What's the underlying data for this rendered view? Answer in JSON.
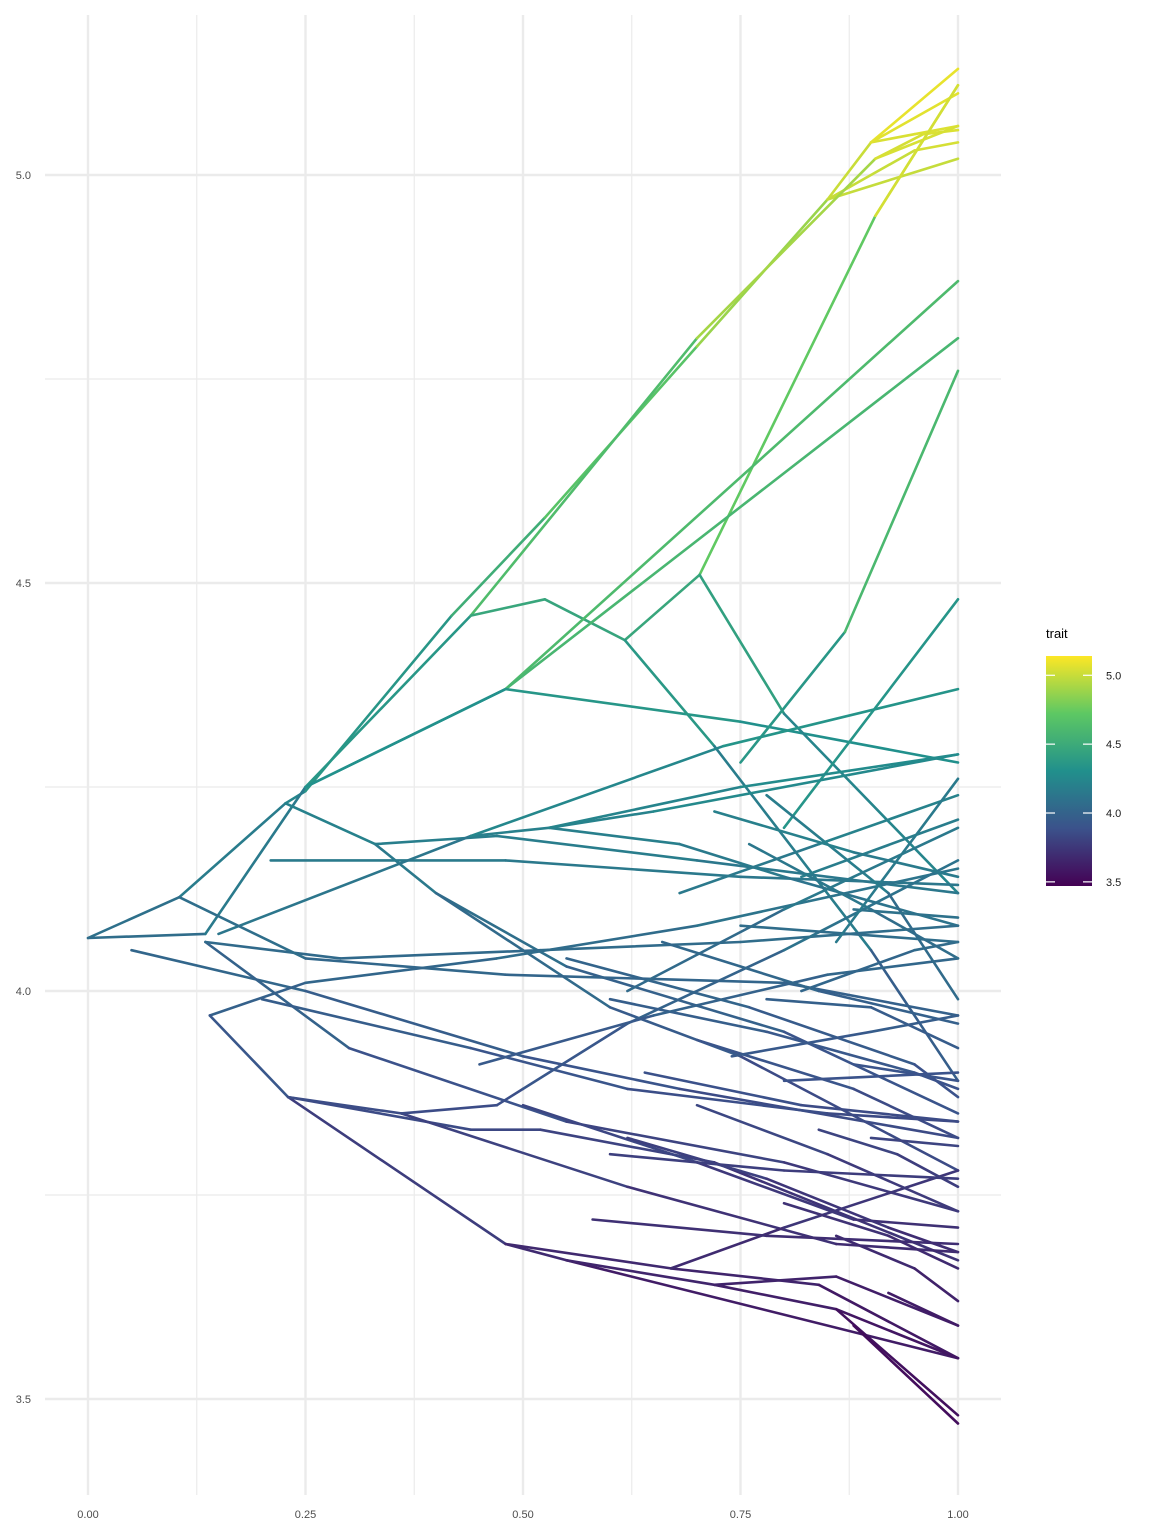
{
  "chart_data": {
    "type": "line",
    "title": "",
    "xlabel": "",
    "ylabel": "",
    "xlim": [
      0,
      1
    ],
    "ylim": [
      3.4,
      5.2
    ],
    "x_ticks": [
      "0.00",
      "0.25",
      "0.50",
      "0.75",
      "1.00"
    ],
    "y_ticks": [
      "3.5",
      "4.0",
      "4.5",
      "5.0"
    ],
    "grid": true,
    "legend": {
      "title": "trait",
      "position": "right",
      "type": "colorbar",
      "range": [
        3.47,
        5.14
      ],
      "labels": [
        "3.5",
        "4.0",
        "4.5",
        "5.0"
      ],
      "palette": [
        "#440154",
        "#3b528b",
        "#21908c",
        "#5dc863",
        "#fde725"
      ]
    },
    "series": [
      {
        "x": [
          0,
          0.105,
          0.227,
          0.25,
          0.418,
          0.525,
          0.7,
          0.85,
          0.9,
          1.0
        ],
        "y": [
          4.065,
          4.115,
          4.23,
          4.245,
          4.46,
          4.58,
          4.79,
          4.97,
          5.04,
          5.13
        ]
      },
      {
        "x": [
          0.9,
          0.95,
          1.0
        ],
        "y": [
          5.04,
          5.05,
          5.06
        ]
      },
      {
        "x": [
          0.9,
          1.0
        ],
        "y": [
          5.04,
          5.1
        ]
      },
      {
        "x": [
          0.85,
          0.95,
          1.0
        ],
        "y": [
          4.97,
          5.03,
          5.04
        ]
      },
      {
        "x": [
          0.85,
          1.0
        ],
        "y": [
          4.97,
          5.02
        ]
      },
      {
        "x": [
          0,
          0.135,
          0.25,
          0.44,
          0.7,
          0.905,
          0.96,
          1.0
        ],
        "y": [
          4.065,
          4.07,
          4.25,
          4.46,
          4.8,
          5.02,
          5.05,
          5.055
        ]
      },
      {
        "x": [
          0.905,
          1.0
        ],
        "y": [
          5.02,
          5.06
        ]
      },
      {
        "x": [
          0.44,
          0.525,
          0.617,
          0.703,
          0.905,
          1.0
        ],
        "y": [
          4.46,
          4.48,
          4.43,
          4.51,
          4.95,
          5.11
        ]
      },
      {
        "x": [
          0.905,
          1.0
        ],
        "y": [
          4.95,
          5.11
        ]
      },
      {
        "x": [
          0.25,
          0.48,
          1.0
        ],
        "y": [
          4.25,
          4.37,
          4.87
        ]
      },
      {
        "x": [
          0.25,
          0.48,
          1.0
        ],
        "y": [
          4.25,
          4.37,
          4.8
        ]
      },
      {
        "x": [
          0.48,
          0.75,
          1.0
        ],
        "y": [
          4.37,
          4.33,
          4.28
        ]
      },
      {
        "x": [
          0.617,
          0.72,
          0.9,
          1.0
        ],
        "y": [
          4.43,
          4.3,
          4.05,
          3.89
        ]
      },
      {
        "x": [
          0.703,
          0.8,
          1.0
        ],
        "y": [
          4.51,
          4.34,
          4.12
        ]
      },
      {
        "x": [
          0.75,
          0.87,
          1.0
        ],
        "y": [
          4.28,
          4.44,
          4.76
        ]
      },
      {
        "x": [
          0.8,
          1.0
        ],
        "y": [
          4.2,
          4.48
        ]
      },
      {
        "x": [
          0.227,
          0.33,
          0.4,
          0.55,
          0.8,
          1.0
        ],
        "y": [
          4.23,
          4.18,
          4.12,
          4.03,
          3.95,
          3.85
        ]
      },
      {
        "x": [
          0.4,
          0.6,
          0.75,
          1.0
        ],
        "y": [
          4.12,
          3.98,
          3.92,
          3.78
        ]
      },
      {
        "x": [
          0.33,
          0.47,
          0.7,
          1.0
        ],
        "y": [
          4.18,
          4.19,
          4.16,
          4.12
        ]
      },
      {
        "x": [
          0.21,
          0.48,
          0.75,
          1.0
        ],
        "y": [
          4.16,
          4.16,
          4.14,
          4.13
        ]
      },
      {
        "x": [
          0.44,
          0.53,
          0.65,
          1.0
        ],
        "y": [
          4.19,
          4.2,
          4.22,
          4.29
        ]
      },
      {
        "x": [
          0.53,
          0.68,
          0.8,
          1.0
        ],
        "y": [
          4.2,
          4.18,
          4.14,
          4.08
        ]
      },
      {
        "x": [
          0.53,
          0.75,
          1.0
        ],
        "y": [
          4.2,
          4.25,
          4.29
        ]
      },
      {
        "x": [
          0.15,
          0.44,
          0.73,
          1.0
        ],
        "y": [
          4.07,
          4.19,
          4.3,
          4.37
        ]
      },
      {
        "x": [
          0.05,
          0.25,
          0.5,
          0.68,
          1.0
        ],
        "y": [
          4.05,
          4.0,
          3.92,
          3.88,
          3.82
        ]
      },
      {
        "x": [
          0.135,
          0.3,
          0.55,
          0.8,
          1.0
        ],
        "y": [
          4.06,
          3.93,
          3.84,
          3.79,
          3.73
        ]
      },
      {
        "x": [
          0.135,
          0.29,
          0.52,
          0.75,
          1.0
        ],
        "y": [
          4.06,
          4.04,
          4.05,
          4.06,
          4.08
        ]
      },
      {
        "x": [
          0.105,
          0.25,
          0.48,
          0.8,
          1.0
        ],
        "y": [
          4.115,
          4.04,
          4.02,
          4.01,
          3.97
        ]
      },
      {
        "x": [
          0.14,
          0.25,
          0.47,
          0.7,
          1.0
        ],
        "y": [
          3.97,
          4.01,
          4.04,
          4.08,
          4.15
        ]
      },
      {
        "x": [
          0.2,
          0.44,
          0.62,
          0.85,
          1.0
        ],
        "y": [
          3.99,
          3.93,
          3.88,
          3.85,
          3.84
        ]
      },
      {
        "x": [
          0.14,
          0.23,
          0.48,
          0.55,
          1.0
        ],
        "y": [
          3.97,
          3.87,
          3.69,
          3.67,
          3.55
        ]
      },
      {
        "x": [
          0.23,
          0.44,
          0.52,
          0.72,
          1.0
        ],
        "y": [
          3.87,
          3.83,
          3.83,
          3.79,
          3.67
        ]
      },
      {
        "x": [
          0.23,
          0.36,
          0.62,
          0.86,
          1.0
        ],
        "y": [
          3.87,
          3.85,
          3.76,
          3.69,
          3.68
        ]
      },
      {
        "x": [
          0.36,
          0.47,
          0.5,
          0.62,
          0.8,
          1.0
        ],
        "y": [
          3.85,
          3.86,
          3.88,
          3.96,
          4.05,
          4.16
        ]
      },
      {
        "x": [
          0.48,
          0.67,
          0.84,
          1.0
        ],
        "y": [
          3.69,
          3.66,
          3.64,
          3.55
        ]
      },
      {
        "x": [
          0.55,
          0.72,
          0.86,
          1.0
        ],
        "y": [
          3.67,
          3.64,
          3.61,
          3.55
        ]
      },
      {
        "x": [
          0.67,
          0.8,
          1.0
        ],
        "y": [
          3.66,
          3.71,
          3.78
        ]
      },
      {
        "x": [
          0.72,
          0.86,
          1.0
        ],
        "y": [
          3.64,
          3.65,
          3.59
        ]
      },
      {
        "x": [
          0.86,
          1.0
        ],
        "y": [
          3.61,
          3.48
        ]
      },
      {
        "x": [
          0.88,
          1.0
        ],
        "y": [
          3.59,
          3.47
        ]
      },
      {
        "x": [
          0.6,
          0.78,
          0.95,
          1.0
        ],
        "y": [
          3.99,
          3.95,
          3.9,
          3.88
        ]
      },
      {
        "x": [
          0.5,
          0.7,
          0.88,
          1.0
        ],
        "y": [
          3.86,
          3.79,
          3.72,
          3.71
        ]
      },
      {
        "x": [
          0.45,
          0.65,
          0.85,
          1.0
        ],
        "y": [
          3.91,
          3.97,
          4.02,
          4.04
        ]
      },
      {
        "x": [
          0.62,
          0.78,
          0.92,
          1.0
        ],
        "y": [
          3.82,
          3.77,
          3.71,
          3.68
        ]
      },
      {
        "x": [
          0.55,
          0.76,
          0.95,
          1.0
        ],
        "y": [
          4.04,
          3.98,
          3.91,
          3.87
        ]
      },
      {
        "x": [
          0.7,
          0.88,
          1.0
        ],
        "y": [
          3.94,
          3.88,
          3.82
        ]
      },
      {
        "x": [
          0.66,
          0.84,
          1.0
        ],
        "y": [
          4.06,
          4.0,
          3.96
        ]
      },
      {
        "x": [
          0.76,
          0.9,
          1.0
        ],
        "y": [
          4.18,
          4.1,
          4.04
        ]
      },
      {
        "x": [
          0.78,
          0.92,
          1.0
        ],
        "y": [
          4.24,
          4.12,
          3.99
        ]
      },
      {
        "x": [
          0.68,
          0.84,
          1.0
        ],
        "y": [
          4.12,
          4.18,
          4.24
        ]
      },
      {
        "x": [
          0.62,
          0.8,
          1.0
        ],
        "y": [
          4.0,
          4.1,
          4.2
        ]
      },
      {
        "x": [
          0.7,
          0.85,
          1.0
        ],
        "y": [
          3.86,
          3.8,
          3.73
        ]
      },
      {
        "x": [
          0.8,
          0.92,
          1.0
        ],
        "y": [
          3.74,
          3.7,
          3.66
        ]
      },
      {
        "x": [
          0.74,
          0.9,
          1.0
        ],
        "y": [
          3.92,
          3.95,
          3.97
        ]
      },
      {
        "x": [
          0.82,
          0.95,
          1.0
        ],
        "y": [
          4.0,
          4.05,
          4.06
        ]
      },
      {
        "x": [
          0.84,
          0.93,
          1.0
        ],
        "y": [
          3.83,
          3.8,
          3.76
        ]
      },
      {
        "x": [
          0.86,
          0.95,
          1.0
        ],
        "y": [
          3.7,
          3.66,
          3.62
        ]
      },
      {
        "x": [
          0.88,
          1.0
        ],
        "y": [
          3.91,
          3.89
        ]
      },
      {
        "x": [
          0.88,
          1.0
        ],
        "y": [
          4.1,
          4.09
        ]
      },
      {
        "x": [
          0.9,
          1.0
        ],
        "y": [
          3.82,
          3.81
        ]
      },
      {
        "x": [
          0.8,
          1.0
        ],
        "y": [
          3.89,
          3.9
        ]
      },
      {
        "x": [
          0.75,
          1.0
        ],
        "y": [
          4.08,
          4.06
        ]
      },
      {
        "x": [
          0.92,
          1.0
        ],
        "y": [
          3.63,
          3.59
        ]
      },
      {
        "x": [
          0.6,
          0.8,
          1.0
        ],
        "y": [
          3.8,
          3.78,
          3.77
        ]
      },
      {
        "x": [
          0.72,
          0.88,
          1.0
        ],
        "y": [
          4.22,
          4.17,
          4.14
        ]
      },
      {
        "x": [
          0.78,
          0.9,
          1.0
        ],
        "y": [
          3.99,
          3.98,
          3.93
        ]
      },
      {
        "x": [
          0.64,
          0.82,
          1.0
        ],
        "y": [
          3.9,
          3.86,
          3.84
        ]
      },
      {
        "x": [
          0.58,
          0.78,
          1.0
        ],
        "y": [
          3.72,
          3.7,
          3.69
        ]
      },
      {
        "x": [
          0.86,
          1.0
        ],
        "y": [
          4.06,
          4.26
        ]
      },
      {
        "x": [
          0.82,
          1.0
        ],
        "y": [
          4.14,
          4.21
        ]
      }
    ]
  }
}
